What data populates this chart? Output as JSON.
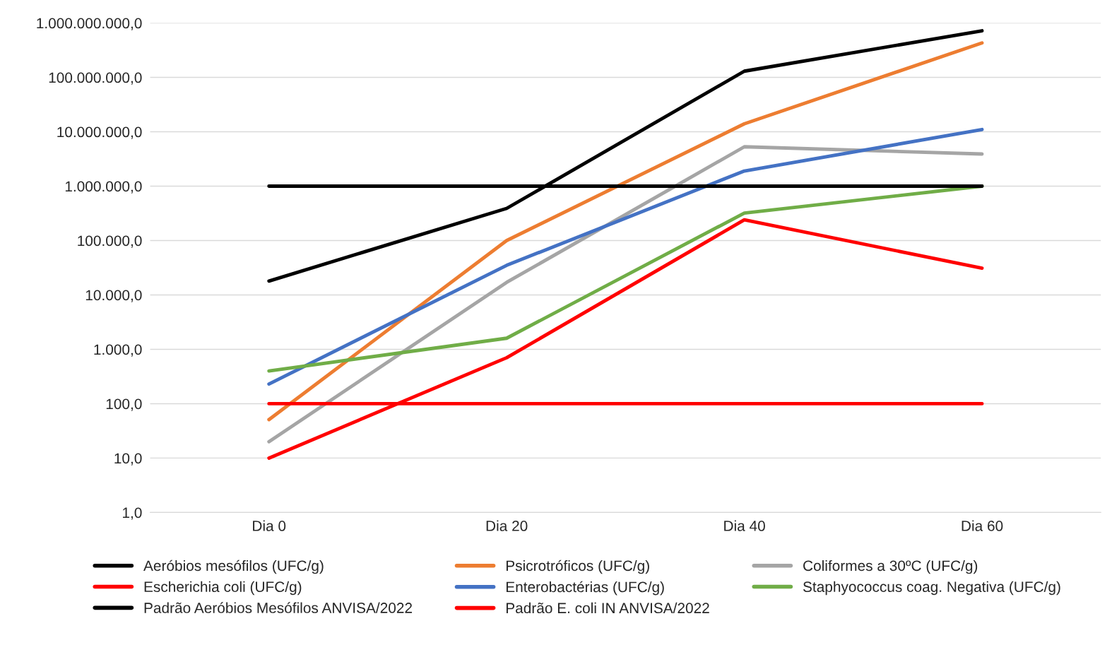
{
  "chart_data": {
    "type": "line",
    "categories": [
      "Dia 0",
      "Dia 20",
      "Dia 40",
      "Dia 60"
    ],
    "log": true,
    "grid": "y",
    "legend": "bottom",
    "marker": "none",
    "line_style": "solid",
    "ylim": [
      1,
      1000000000
    ],
    "yticks": [
      {
        "value": 1,
        "label": "1,0"
      },
      {
        "value": 10,
        "label": "10,0"
      },
      {
        "value": 100,
        "label": "100,0"
      },
      {
        "value": 1000,
        "label": "1.000,0"
      },
      {
        "value": 10000,
        "label": "10.000,0"
      },
      {
        "value": 100000,
        "label": "100.000,0"
      },
      {
        "value": 1000000,
        "label": "1.000.000,0"
      },
      {
        "value": 10000000,
        "label": "10.000.000,0"
      },
      {
        "value": 100000000,
        "label": "100.000.000,0"
      },
      {
        "value": 1000000000,
        "label": "1.000.000.000,0"
      }
    ],
    "series": [
      {
        "name": "Aeróbios mesófilos (UFC/g)",
        "color": "#000000",
        "values": [
          18000,
          390000,
          130000000,
          720000000
        ]
      },
      {
        "name": "Psicrotróficos (UFC/g)",
        "color": "#ed7d31",
        "values": [
          51,
          100000,
          14000000,
          430000000
        ]
      },
      {
        "name": "Coliformes a 30ºC (UFC/g)",
        "color": "#a5a5a5",
        "values": [
          20,
          17000,
          5300000,
          3900000
        ]
      },
      {
        "name": "Escherichia coli (UFC/g)",
        "color": "#ff0000",
        "values": [
          10,
          700,
          240000,
          31000
        ]
      },
      {
        "name": "Enterobactérias (UFC/g)",
        "color": "#4472c4",
        "values": [
          230,
          35000,
          1900000,
          11000000
        ]
      },
      {
        "name": "Staphyococcus coag. Negativa (UFC/g)",
        "color": "#70ad47",
        "values": [
          400,
          1600,
          320000,
          1000000
        ]
      },
      {
        "name": "Padrão Aeróbios Mesófilos ANVISA/2022",
        "color": "#000000",
        "values": [
          1000000,
          1000000,
          1000000,
          1000000
        ]
      },
      {
        "name": "Padrão E. coli IN ANVISA/2022",
        "color": "#ff0000",
        "values": [
          100,
          100,
          100,
          100
        ]
      }
    ]
  }
}
